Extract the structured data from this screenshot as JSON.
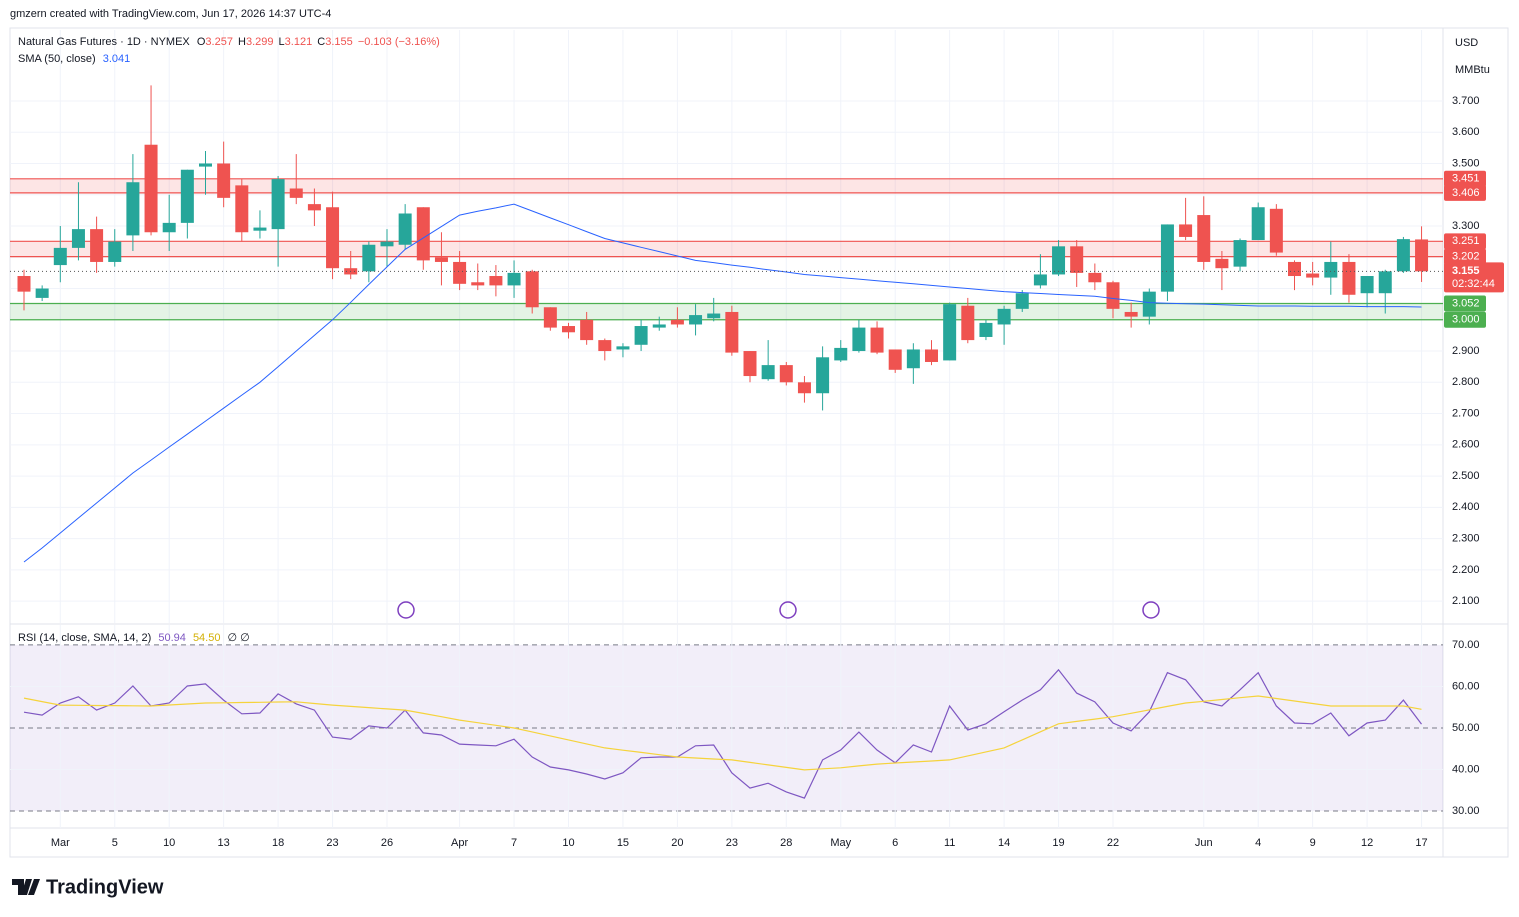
{
  "header": "gmzern created with TradingView.com, Jun 17, 2026 14:37 UTC-4",
  "footer": "TradingView",
  "chart_data": [
    {
      "type": "candlestick",
      "title": "Natural Gas Futures · 1D · NYMEX",
      "ohlc_letters": [
        "O",
        "H",
        "L",
        "C"
      ],
      "change": "−0.103 (−3.16%)",
      "countdown": "02:32:44",
      "unit": [
        "USD",
        "MMBtu"
      ],
      "up_color": "#26a69a",
      "down_color": "#ef5350",
      "categories": [
        null,
        null,
        "Mar",
        null,
        null,
        "5",
        null,
        null,
        "10",
        null,
        null,
        "13",
        null,
        null,
        "18",
        null,
        null,
        "23",
        null,
        null,
        "26",
        null,
        null,
        null,
        "Apr",
        null,
        null,
        "7",
        null,
        null,
        "10",
        null,
        null,
        "15",
        null,
        null,
        "20",
        null,
        null,
        "23",
        null,
        null,
        "28",
        null,
        null,
        "May",
        null,
        null,
        "6",
        null,
        null,
        "11",
        null,
        null,
        "14",
        null,
        null,
        "19",
        null,
        null,
        "22",
        null,
        null,
        null,
        null,
        "Jun",
        null,
        null,
        "4",
        null,
        null,
        "9",
        null,
        null,
        "12",
        null,
        null,
        "17"
      ],
      "open": [
        3.14,
        3.07,
        3.175,
        3.23,
        3.29,
        3.185,
        3.27,
        3.56,
        3.28,
        3.31,
        3.49,
        3.5,
        3.43,
        3.285,
        3.29,
        3.42,
        3.37,
        3.36,
        3.165,
        3.155,
        3.235,
        3.24,
        3.36,
        3.2,
        3.185,
        3.12,
        3.14,
        3.11,
        3.155,
        3.04,
        2.98,
        3.0,
        2.935,
        2.905,
        2.92,
        2.975,
        3.0,
        2.985,
        3.005,
        3.025,
        2.9,
        2.81,
        2.855,
        2.8,
        2.765,
        2.87,
        2.9,
        2.975,
        2.905,
        2.845,
        2.905,
        2.87,
        3.045,
        2.945,
        2.985,
        3.035,
        3.11,
        3.145,
        3.235,
        3.15,
        3.12,
        3.025,
        3.01,
        3.09,
        3.305,
        3.335,
        3.195,
        3.17,
        3.255,
        3.355,
        3.185,
        3.148,
        3.135,
        3.185,
        3.085,
        3.085,
        3.155,
        3.257
      ],
      "high": [
        3.16,
        3.11,
        3.3,
        3.44,
        3.33,
        3.29,
        3.53,
        3.75,
        3.4,
        3.48,
        3.54,
        3.57,
        3.45,
        3.35,
        3.46,
        3.53,
        3.42,
        3.41,
        3.22,
        3.25,
        3.29,
        3.37,
        3.36,
        3.28,
        3.22,
        3.18,
        3.175,
        3.19,
        3.16,
        3.04,
        2.99,
        3.025,
        2.94,
        2.925,
        3.0,
        3.01,
        3.04,
        3.05,
        3.07,
        3.045,
        2.9,
        2.935,
        2.865,
        2.82,
        2.915,
        2.935,
        3.0,
        2.995,
        2.905,
        2.925,
        2.935,
        3.055,
        3.07,
        3.0,
        3.045,
        3.095,
        3.21,
        3.255,
        3.255,
        3.18,
        3.125,
        3.055,
        3.1,
        3.305,
        3.39,
        3.395,
        3.22,
        3.26,
        3.375,
        3.37,
        3.19,
        3.185,
        3.25,
        3.21,
        3.14,
        3.16,
        3.265,
        3.299
      ],
      "low": [
        3.03,
        3.06,
        3.12,
        3.19,
        3.15,
        3.17,
        3.22,
        3.27,
        3.22,
        3.26,
        3.4,
        3.36,
        3.25,
        3.26,
        3.17,
        3.37,
        3.3,
        3.13,
        3.13,
        3.12,
        3.17,
        3.225,
        3.16,
        3.11,
        3.095,
        3.095,
        3.075,
        3.07,
        3.02,
        2.965,
        2.94,
        2.92,
        2.87,
        2.88,
        2.9,
        2.965,
        2.975,
        2.95,
        2.995,
        2.885,
        2.8,
        2.805,
        2.79,
        2.735,
        2.71,
        2.865,
        2.895,
        2.89,
        2.83,
        2.795,
        2.855,
        2.87,
        2.925,
        2.935,
        2.92,
        3.025,
        3.1,
        3.14,
        3.105,
        3.095,
        3.005,
        2.975,
        2.985,
        3.06,
        3.255,
        3.16,
        3.095,
        3.155,
        3.255,
        3.205,
        3.095,
        3.11,
        3.08,
        3.055,
        3.04,
        3.02,
        3.15,
        3.121
      ],
      "close": [
        3.09,
        3.1,
        3.23,
        3.29,
        3.185,
        3.25,
        3.44,
        3.28,
        3.31,
        3.48,
        3.5,
        3.39,
        3.28,
        3.295,
        3.45,
        3.39,
        3.35,
        3.165,
        3.145,
        3.24,
        3.25,
        3.34,
        3.19,
        3.185,
        3.115,
        3.11,
        3.11,
        3.15,
        3.04,
        2.975,
        2.96,
        2.935,
        2.9,
        2.915,
        2.98,
        2.985,
        2.985,
        3.015,
        3.02,
        2.895,
        2.82,
        2.855,
        2.8,
        2.765,
        2.88,
        2.91,
        2.975,
        2.895,
        2.84,
        2.905,
        2.865,
        3.05,
        2.935,
        2.99,
        3.035,
        3.085,
        3.145,
        3.235,
        3.15,
        3.12,
        3.035,
        3.01,
        3.09,
        3.305,
        3.265,
        3.185,
        3.165,
        3.255,
        3.36,
        3.215,
        3.14,
        3.135,
        3.185,
        3.08,
        3.14,
        3.155,
        3.258,
        3.155
      ],
      "sma": {
        "name": "SMA (50, close)",
        "color": "#2962ff",
        "values": [
          2.225,
          2.27,
          2.318,
          2.366,
          2.414,
          2.462,
          2.51,
          2.551,
          2.593,
          2.634,
          2.676,
          2.717,
          2.759,
          2.8,
          2.85,
          2.9,
          2.95,
          3.0,
          3.056,
          3.113,
          3.169,
          3.225,
          3.262,
          3.298,
          3.335,
          3.347,
          3.358,
          3.37,
          3.348,
          3.326,
          3.304,
          3.282,
          3.26,
          3.246,
          3.232,
          3.218,
          3.204,
          3.19,
          3.183,
          3.175,
          3.168,
          3.16,
          3.153,
          3.145,
          3.14,
          3.135,
          3.13,
          3.125,
          3.12,
          3.115,
          3.11,
          3.105,
          3.1,
          3.095,
          3.09,
          3.087,
          3.084,
          3.081,
          3.078,
          3.075,
          3.068,
          3.062,
          3.055,
          3.053,
          3.051,
          3.05,
          3.048,
          3.046,
          3.044,
          3.044,
          3.044,
          3.043,
          3.043,
          3.043,
          3.042,
          3.042,
          3.042,
          3.041
        ]
      },
      "zones": [
        {
          "from": 3.406,
          "to": 3.451,
          "color": "#ef5350"
        },
        {
          "from": 3.202,
          "to": 3.251,
          "color": "#ef5350"
        },
        {
          "from": {
            "value": 3.0,
            "label": "3.000"
          },
          "to": 3.052,
          "color": "#4caf50"
        }
      ],
      "ylim": [
        2.03,
        3.927
      ],
      "yticks": [
        {
          "value": 2.1,
          "label": "2.100"
        },
        {
          "value": 2.2,
          "label": "2.200"
        },
        {
          "value": 2.3,
          "label": "2.300"
        },
        {
          "value": 2.4,
          "label": "2.400"
        },
        {
          "value": 2.5,
          "label": "2.500"
        },
        {
          "value": 2.6,
          "label": "2.600"
        },
        {
          "value": 2.7,
          "label": "2.700"
        },
        {
          "value": 2.8,
          "label": "2.800"
        },
        {
          "value": 2.9,
          "label": "2.900"
        },
        {
          "value": 3.0,
          "label": "3.000"
        },
        {
          "value": 3.1,
          "label": "3.100"
        },
        {
          "value": 3.2,
          "label": "3.200"
        },
        {
          "value": 3.3,
          "label": "3.300"
        },
        {
          "value": 3.4,
          "label": "3.400"
        },
        {
          "value": 3.5,
          "label": "3.500"
        },
        {
          "value": 3.6,
          "label": "3.600"
        },
        {
          "value": 3.7,
          "label": "3.700"
        }
      ],
      "grid": true
    },
    {
      "type": "line",
      "title": "RSI (14, close, SMA, 14, 2)",
      "extra_legend": "∅  ∅",
      "series": [
        {
          "color": "#7e57c2",
          "values": [
            53.8,
            53.1,
            56,
            57.5,
            54.3,
            56,
            60.1,
            55.3,
            56,
            60.1,
            60.6,
            56.7,
            53.4,
            53.6,
            58.2,
            55.8,
            54.3,
            47.8,
            47.3,
            50.5,
            50,
            54.3,
            48.8,
            48.3,
            46.1,
            45.9,
            45.7,
            47.3,
            43,
            40.6,
            39.9,
            38.9,
            37.7,
            39.2,
            42.8,
            43,
            43,
            45.7,
            45.9,
            39.2,
            35.5,
            36.7,
            34.6,
            33.1,
            42.3,
            44.7,
            49,
            44.7,
            41.6,
            45.9,
            44.2,
            55.3,
            49.5,
            51,
            53.9,
            56.7,
            59.2,
            64,
            58.4,
            56.3,
            51.2,
            49.3,
            53.9,
            63.3,
            61.6,
            56.3,
            55.3,
            59.2,
            63.3,
            55.3,
            51.2,
            51,
            53.6,
            48.1,
            51.2,
            51.9,
            56.7,
            50.94
          ]
        },
        {
          "color": "#f5d33c",
          "legend_label": "54.50",
          "values": [
            57.2,
            56.35,
            55.5,
            55.46,
            55.42,
            55.38,
            55.34,
            55.3,
            55.53,
            55.77,
            56,
            56.06,
            56.12,
            56.18,
            56.24,
            56.3,
            55.9,
            55.5,
            55.2,
            54.9,
            54.6,
            54.3,
            53.5,
            52.7,
            51.9,
            51.27,
            50.63,
            50,
            49.04,
            48.08,
            47.12,
            46.16,
            45.2,
            44.65,
            44.1,
            43.55,
            43,
            42.77,
            42.53,
            42.3,
            41.7,
            41.1,
            40.5,
            39.9,
            40.15,
            40.4,
            40.85,
            41.3,
            41.55,
            41.8,
            42.05,
            42.3,
            43.27,
            44.23,
            45.2,
            47.13,
            49.07,
            51,
            51.57,
            52.13,
            52.7,
            53.53,
            54.35,
            55.18,
            56,
            56.43,
            56.85,
            57.28,
            57.7,
            57.1,
            56.5,
            55.9,
            55.3,
            55.3,
            55.3,
            55.3,
            55.3,
            54.5
          ]
        }
      ],
      "band_color": "#7e57c2",
      "dashed_levels": [
        30,
        50,
        70
      ],
      "ylim": [
        25.9,
        74.8
      ],
      "yticks": [
        {
          "value": 30,
          "label": "30.00"
        },
        {
          "value": 40,
          "label": "40.00"
        },
        {
          "value": 50,
          "label": "50.00"
        },
        {
          "value": 60,
          "label": "60.00"
        },
        {
          "value": 70,
          "label": "70.00"
        }
      ],
      "grid": true
    }
  ]
}
